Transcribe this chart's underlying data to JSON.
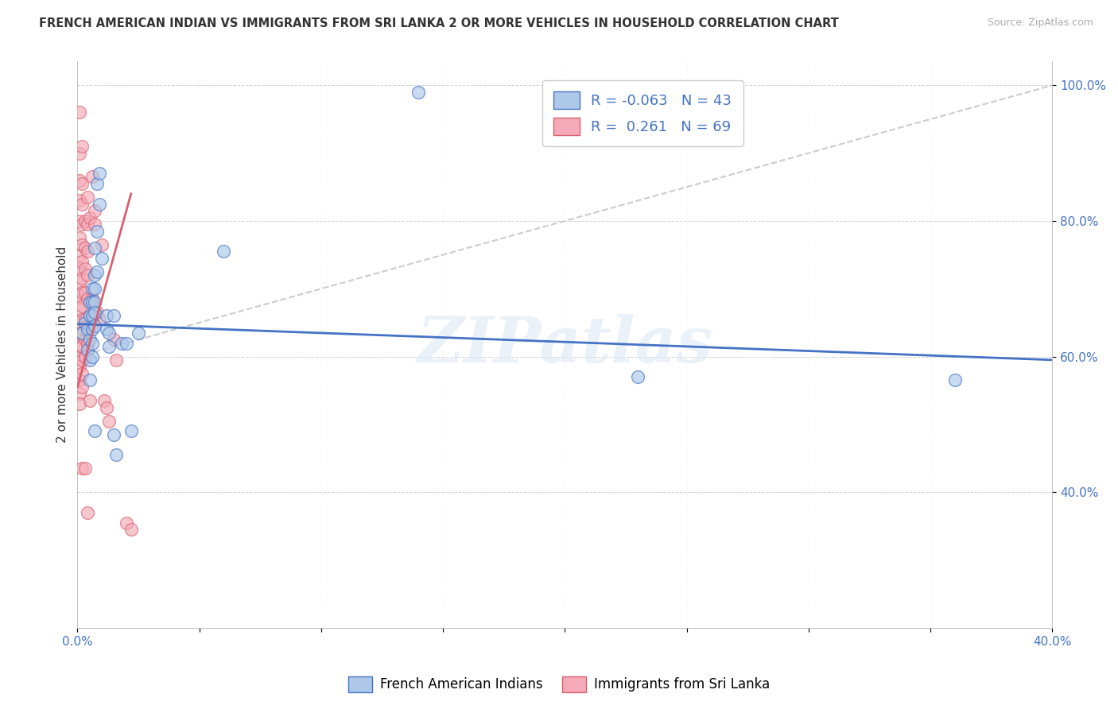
{
  "title": "FRENCH AMERICAN INDIAN VS IMMIGRANTS FROM SRI LANKA 2 OR MORE VEHICLES IN HOUSEHOLD CORRELATION CHART",
  "source": "Source: ZipAtlas.com",
  "ylabel": "2 or more Vehicles in Household",
  "x_min": 0.0,
  "x_max": 0.4,
  "y_min": 0.2,
  "y_max": 1.035,
  "x_ticks": [
    0.0,
    0.05,
    0.1,
    0.15,
    0.2,
    0.25,
    0.3,
    0.35,
    0.4
  ],
  "y_ticks": [
    0.4,
    0.6,
    0.8,
    1.0
  ],
  "y_tick_labels": [
    "40.0%",
    "60.0%",
    "80.0%",
    "100.0%"
  ],
  "legend_label1": "French American Indians",
  "legend_label2": "Immigrants from Sri Lanka",
  "color_blue": "#adc8e8",
  "color_pink": "#f4aab8",
  "trendline_blue": "#4472c4",
  "trendline_pink": "#d9606e",
  "watermark": "ZIPatlas",
  "blue_scatter": [
    [
      0.002,
      0.635
    ],
    [
      0.003,
      0.65
    ],
    [
      0.004,
      0.64
    ],
    [
      0.004,
      0.61
    ],
    [
      0.005,
      0.68
    ],
    [
      0.005,
      0.66
    ],
    [
      0.005,
      0.625
    ],
    [
      0.005,
      0.595
    ],
    [
      0.005,
      0.565
    ],
    [
      0.006,
      0.7
    ],
    [
      0.006,
      0.68
    ],
    [
      0.006,
      0.66
    ],
    [
      0.006,
      0.64
    ],
    [
      0.006,
      0.62
    ],
    [
      0.006,
      0.6
    ],
    [
      0.007,
      0.76
    ],
    [
      0.007,
      0.72
    ],
    [
      0.007,
      0.7
    ],
    [
      0.007,
      0.68
    ],
    [
      0.007,
      0.665
    ],
    [
      0.007,
      0.645
    ],
    [
      0.007,
      0.49
    ],
    [
      0.008,
      0.855
    ],
    [
      0.008,
      0.785
    ],
    [
      0.008,
      0.725
    ],
    [
      0.009,
      0.87
    ],
    [
      0.009,
      0.825
    ],
    [
      0.01,
      0.745
    ],
    [
      0.012,
      0.66
    ],
    [
      0.012,
      0.64
    ],
    [
      0.013,
      0.635
    ],
    [
      0.013,
      0.615
    ],
    [
      0.015,
      0.66
    ],
    [
      0.015,
      0.485
    ],
    [
      0.016,
      0.455
    ],
    [
      0.018,
      0.62
    ],
    [
      0.02,
      0.62
    ],
    [
      0.022,
      0.49
    ],
    [
      0.025,
      0.635
    ],
    [
      0.06,
      0.755
    ],
    [
      0.14,
      0.99
    ],
    [
      0.23,
      0.57
    ],
    [
      0.36,
      0.565
    ]
  ],
  "pink_scatter": [
    [
      0.001,
      0.96
    ],
    [
      0.001,
      0.9
    ],
    [
      0.001,
      0.86
    ],
    [
      0.001,
      0.83
    ],
    [
      0.001,
      0.8
    ],
    [
      0.001,
      0.775
    ],
    [
      0.001,
      0.75
    ],
    [
      0.001,
      0.73
    ],
    [
      0.001,
      0.71
    ],
    [
      0.001,
      0.69
    ],
    [
      0.001,
      0.67
    ],
    [
      0.001,
      0.65
    ],
    [
      0.001,
      0.635
    ],
    [
      0.001,
      0.615
    ],
    [
      0.001,
      0.6
    ],
    [
      0.001,
      0.585
    ],
    [
      0.001,
      0.565
    ],
    [
      0.001,
      0.545
    ],
    [
      0.001,
      0.53
    ],
    [
      0.002,
      0.91
    ],
    [
      0.002,
      0.855
    ],
    [
      0.002,
      0.825
    ],
    [
      0.002,
      0.795
    ],
    [
      0.002,
      0.765
    ],
    [
      0.002,
      0.74
    ],
    [
      0.002,
      0.715
    ],
    [
      0.002,
      0.695
    ],
    [
      0.002,
      0.675
    ],
    [
      0.002,
      0.655
    ],
    [
      0.002,
      0.635
    ],
    [
      0.002,
      0.615
    ],
    [
      0.002,
      0.595
    ],
    [
      0.002,
      0.575
    ],
    [
      0.002,
      0.555
    ],
    [
      0.002,
      0.435
    ],
    [
      0.003,
      0.8
    ],
    [
      0.003,
      0.76
    ],
    [
      0.003,
      0.73
    ],
    [
      0.003,
      0.695
    ],
    [
      0.003,
      0.655
    ],
    [
      0.003,
      0.625
    ],
    [
      0.003,
      0.6
    ],
    [
      0.003,
      0.435
    ],
    [
      0.004,
      0.835
    ],
    [
      0.004,
      0.795
    ],
    [
      0.004,
      0.755
    ],
    [
      0.004,
      0.72
    ],
    [
      0.004,
      0.685
    ],
    [
      0.004,
      0.645
    ],
    [
      0.004,
      0.62
    ],
    [
      0.004,
      0.37
    ],
    [
      0.005,
      0.805
    ],
    [
      0.005,
      0.645
    ],
    [
      0.005,
      0.535
    ],
    [
      0.006,
      0.865
    ],
    [
      0.006,
      0.685
    ],
    [
      0.006,
      0.655
    ],
    [
      0.007,
      0.815
    ],
    [
      0.007,
      0.795
    ],
    [
      0.008,
      0.665
    ],
    [
      0.009,
      0.655
    ],
    [
      0.01,
      0.765
    ],
    [
      0.011,
      0.535
    ],
    [
      0.012,
      0.525
    ],
    [
      0.013,
      0.505
    ],
    [
      0.015,
      0.625
    ],
    [
      0.016,
      0.595
    ],
    [
      0.02,
      0.355
    ],
    [
      0.022,
      0.345
    ]
  ],
  "blue_trendline_x": [
    0.0,
    0.4
  ],
  "blue_trendline_y": [
    0.648,
    0.595
  ],
  "pink_trendline_x": [
    0.0,
    0.022
  ],
  "pink_trendline_y": [
    0.555,
    0.84
  ],
  "diag_line_x": [
    0.0,
    0.4
  ],
  "diag_line_y": [
    0.6,
    1.0
  ]
}
